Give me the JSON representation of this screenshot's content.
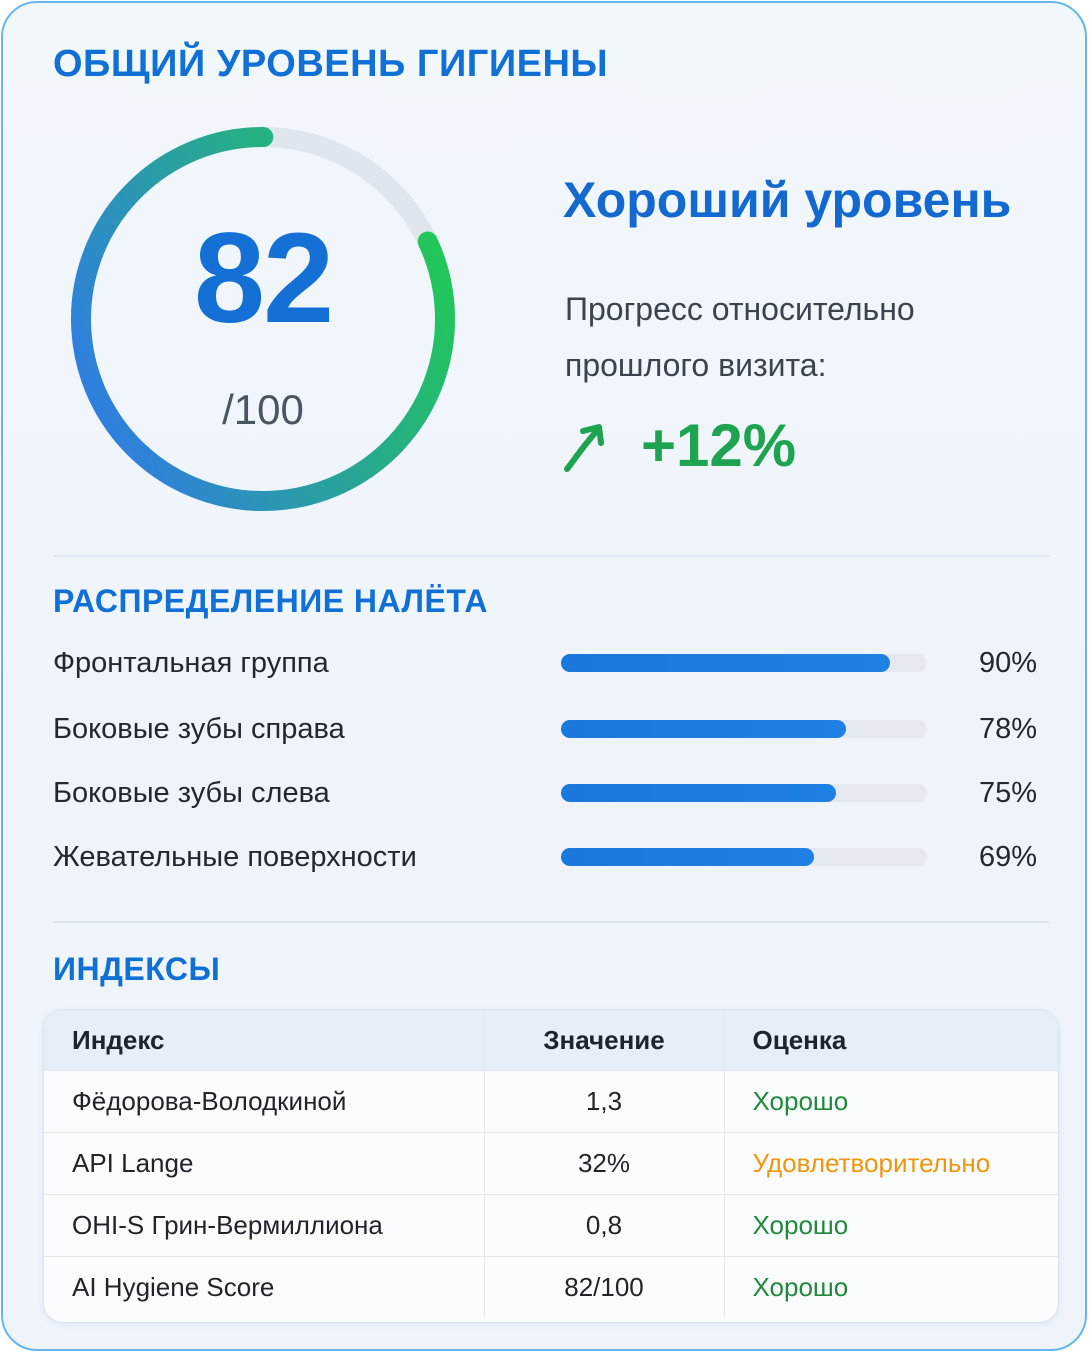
{
  "header": {
    "title": "ОБЩИЙ УРОВЕНЬ ГИГИЕНЫ"
  },
  "score": {
    "value": "82",
    "max_label": "/100",
    "fraction": 0.82,
    "level_title": "Хороший уровень",
    "progress_text": "Прогресс относительно прошлого визита:",
    "progress_change": "+12%",
    "colors": {
      "start": "#2f80dc",
      "end": "#22c65a",
      "track": "#dfe6ee"
    },
    "trend_icon": "arrow-up-right-icon"
  },
  "plaque": {
    "title": "РАСПРЕДЕЛЕНИЕ НАЛЁТА",
    "items": [
      {
        "label": "Фронтальная группа",
        "value": "90%",
        "fraction": 0.9
      },
      {
        "label": "Боковые зубы справа",
        "value": "78%",
        "fraction": 0.78
      },
      {
        "label": "Боковые зубы слева",
        "value": "75%",
        "fraction": 0.75
      },
      {
        "label": "Жевательные поверхности",
        "value": "69%",
        "fraction": 0.69
      }
    ]
  },
  "indices": {
    "title": "ИНДЕКСЫ",
    "columns": [
      "Индекс",
      "Значение",
      "Оценка"
    ],
    "rows": [
      {
        "index": "Фёдорова-Володкиной",
        "value": "1,3",
        "grade": "Хорошо",
        "grade_color": "#1f8a3a"
      },
      {
        "index": "API Lange",
        "value": "32%",
        "grade": "Удовлетворительно",
        "grade_color": "#f0950c"
      },
      {
        "index": "OHI-S Грин-Вермиллиона",
        "value": "0,8",
        "grade": "Хорошо",
        "grade_color": "#1f8a3a"
      },
      {
        "index": "AI Hygiene Score",
        "value": "82/100",
        "grade": "Хорошо",
        "grade_color": "#1f8a3a"
      }
    ]
  }
}
